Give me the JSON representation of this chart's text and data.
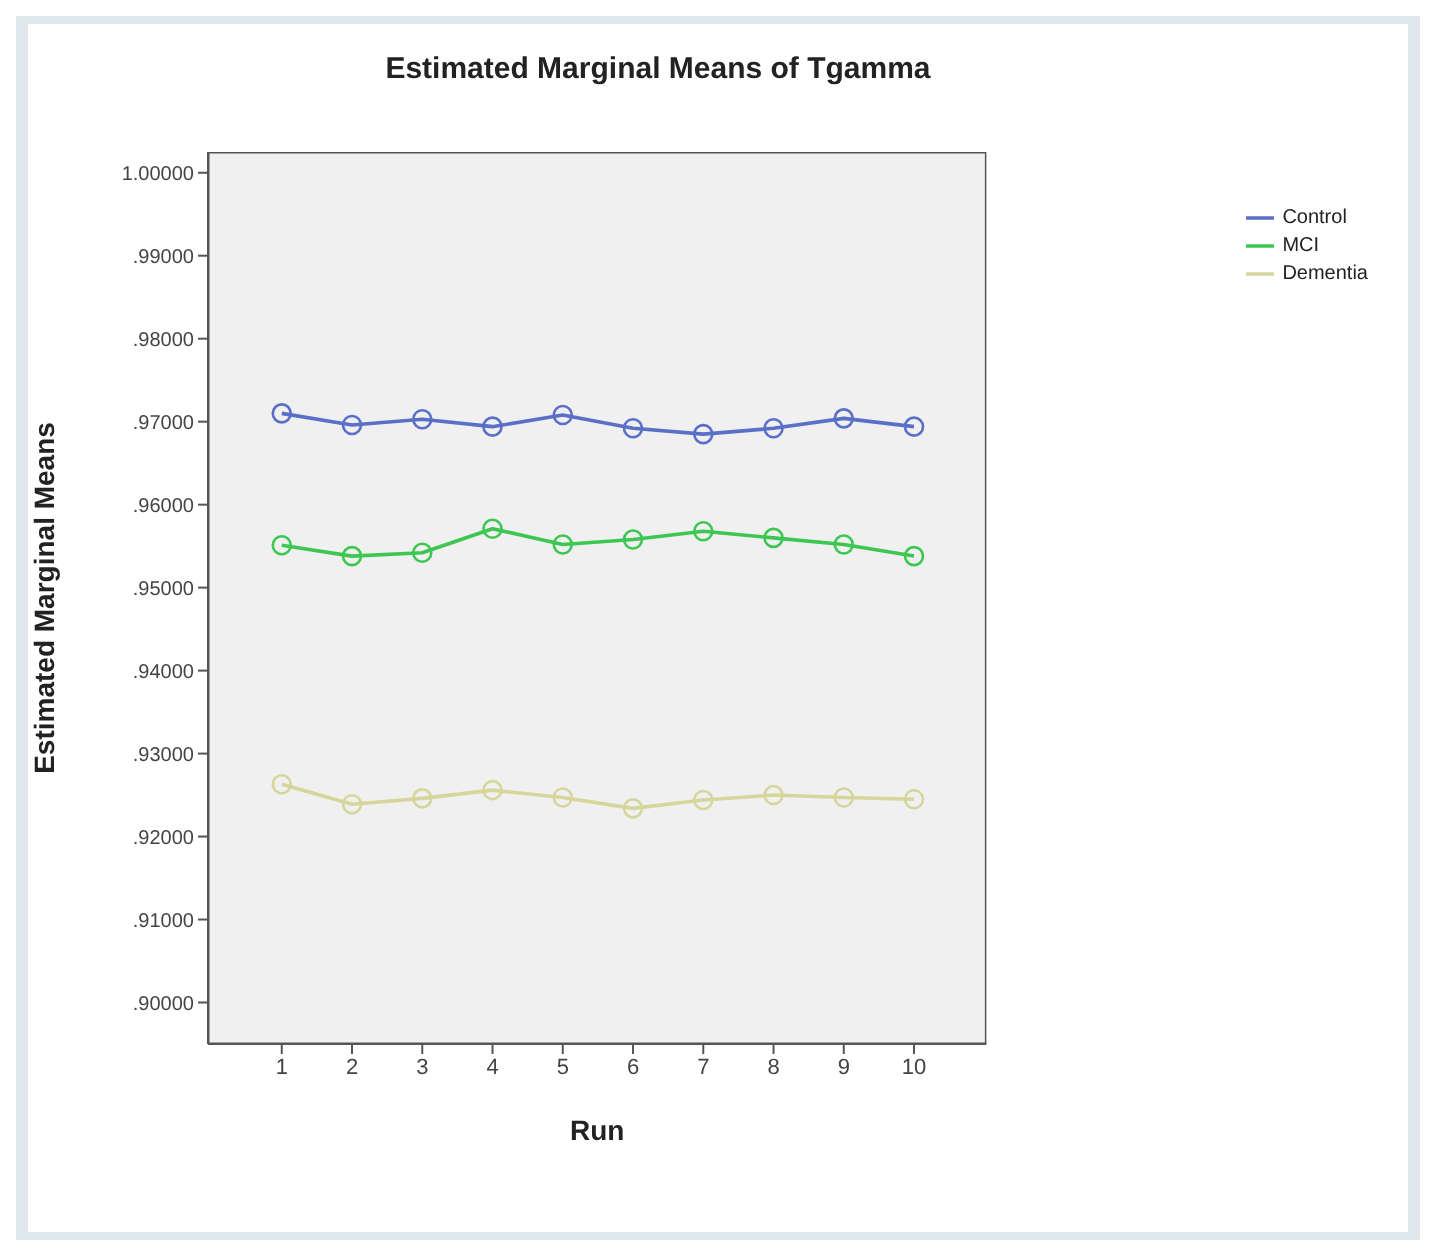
{
  "chart_data": {
    "type": "line",
    "title": "Estimated Marginal Means of Tgamma",
    "xlabel": "Run",
    "ylabel": "Estimated Marginal Means",
    "x": [
      1,
      2,
      3,
      4,
      5,
      6,
      7,
      8,
      9,
      10
    ],
    "series": [
      {
        "name": "Control",
        "color": "#5a6fc8",
        "values": [
          0.971,
          0.9696,
          0.9703,
          0.9694,
          0.9708,
          0.9692,
          0.9685,
          0.9692,
          0.9704,
          0.9694
        ]
      },
      {
        "name": "MCI",
        "color": "#3ec653",
        "values": [
          0.9551,
          0.9538,
          0.9542,
          0.9571,
          0.9552,
          0.9558,
          0.9568,
          0.956,
          0.9552,
          0.9538
        ]
      },
      {
        "name": "Dementia",
        "color": "#d6d69c",
        "values": [
          0.9263,
          0.9239,
          0.9246,
          0.9256,
          0.9247,
          0.9234,
          0.9244,
          0.925,
          0.9247,
          0.9245
        ]
      }
    ],
    "xlim": [
      -0.05,
      11.03
    ],
    "xticks": [
      1,
      2,
      3,
      4,
      5,
      6,
      7,
      8,
      9,
      10
    ],
    "ylim": [
      0.895,
      1.0025
    ],
    "yticks": [
      {
        "value": 0.9,
        "label": ".90000"
      },
      {
        "value": 0.91,
        "label": ".91000"
      },
      {
        "value": 0.92,
        "label": ".92000"
      },
      {
        "value": 0.93,
        "label": ".93000"
      },
      {
        "value": 0.94,
        "label": ".94000"
      },
      {
        "value": 0.95,
        "label": ".95000"
      },
      {
        "value": 0.96,
        "label": ".96000"
      },
      {
        "value": 0.97,
        "label": ".97000"
      },
      {
        "value": 0.98,
        "label": ".98000"
      },
      {
        "value": 0.99,
        "label": ".99000"
      },
      {
        "value": 1.0,
        "label": "1.00000"
      }
    ],
    "grid": false,
    "legend": "top right",
    "marker": "circle",
    "line_style": "solid"
  }
}
